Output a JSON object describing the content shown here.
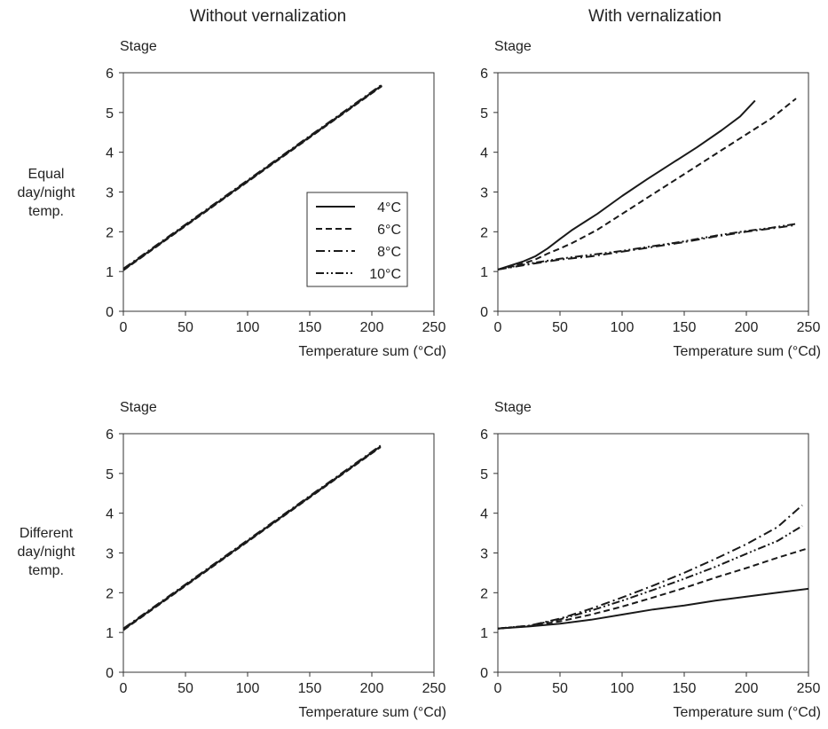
{
  "figure": {
    "column_titles": [
      "Without vernalization",
      "With vernalization"
    ],
    "row_labels": [
      [
        "Equal",
        "day/night",
        "temp."
      ],
      [
        "Different",
        "day/night",
        "temp."
      ]
    ]
  },
  "legend": {
    "location": "inside top-left panel, right side",
    "entries": [
      {
        "label": "4°C",
        "dash": "solid"
      },
      {
        "label": "6°C",
        "dash": "dashed"
      },
      {
        "label": "8°C",
        "dash": "dash-dot"
      },
      {
        "label": "10°C",
        "dash": "dash-dot-dot"
      }
    ]
  },
  "chart_data": [
    {
      "type": "line",
      "panel": "top-left",
      "ylabel": "Stage",
      "xlabel": "Temperature sum (°Cd)",
      "xlim": [
        0,
        250
      ],
      "ylim": [
        0,
        6
      ],
      "xticks": [
        "0",
        "50",
        "100",
        "150",
        "200",
        "250"
      ],
      "yticks": [
        "0",
        "1",
        "2",
        "3",
        "4",
        "5",
        "6"
      ],
      "grid": false,
      "legend": true,
      "series": [
        {
          "dash": "solid",
          "x": [
            0,
            208
          ],
          "y": [
            1.05,
            5.68
          ]
        },
        {
          "dash": "dashed",
          "x": [
            0,
            208
          ],
          "y": [
            1.03,
            5.66
          ]
        },
        {
          "dash": "dash-dot",
          "x": [
            0,
            208
          ],
          "y": [
            1.07,
            5.7
          ]
        },
        {
          "dash": "dash-dot-dot",
          "x": [
            0,
            208
          ],
          "y": [
            1.04,
            5.67
          ]
        }
      ]
    },
    {
      "type": "line",
      "panel": "top-right",
      "ylabel": "Stage",
      "xlabel": "Temperature sum (°Cd)",
      "xlim": [
        0,
        250
      ],
      "ylim": [
        0,
        6
      ],
      "xticks": [
        "0",
        "50",
        "100",
        "150",
        "200",
        "250"
      ],
      "yticks": [
        "0",
        "1",
        "2",
        "3",
        "4",
        "5",
        "6"
      ],
      "grid": false,
      "legend": false,
      "series": [
        {
          "dash": "solid",
          "x": [
            0,
            10,
            20,
            30,
            40,
            50,
            60,
            70,
            80,
            100,
            120,
            140,
            160,
            180,
            195,
            207
          ],
          "y": [
            1.05,
            1.15,
            1.25,
            1.38,
            1.58,
            1.82,
            2.05,
            2.25,
            2.45,
            2.9,
            3.32,
            3.72,
            4.12,
            4.55,
            4.9,
            5.3
          ]
        },
        {
          "dash": "dashed",
          "x": [
            0,
            10,
            20,
            30,
            40,
            50,
            60,
            80,
            100,
            120,
            140,
            160,
            180,
            200,
            220,
            240
          ],
          "y": [
            1.05,
            1.12,
            1.2,
            1.3,
            1.45,
            1.58,
            1.72,
            2.05,
            2.45,
            2.85,
            3.25,
            3.65,
            4.05,
            4.45,
            4.85,
            5.35
          ]
        },
        {
          "dash": "dash-dot",
          "x": [
            0,
            25,
            50,
            75,
            100,
            125,
            150,
            175,
            200,
            220,
            240
          ],
          "y": [
            1.05,
            1.18,
            1.3,
            1.38,
            1.5,
            1.62,
            1.74,
            1.88,
            2.0,
            2.08,
            2.17
          ]
        },
        {
          "dash": "dash-dot-dot",
          "x": [
            0,
            25,
            50,
            75,
            100,
            125,
            150,
            175,
            200,
            220,
            240
          ],
          "y": [
            1.05,
            1.2,
            1.32,
            1.42,
            1.52,
            1.64,
            1.76,
            1.9,
            2.02,
            2.1,
            2.2
          ]
        }
      ]
    },
    {
      "type": "line",
      "panel": "bottom-left",
      "ylabel": "Stage",
      "xlabel": "Temperature sum (°Cd)",
      "xlim": [
        0,
        250
      ],
      "ylim": [
        0,
        6
      ],
      "xticks": [
        "0",
        "50",
        "100",
        "150",
        "200",
        "250"
      ],
      "yticks": [
        "0",
        "1",
        "2",
        "3",
        "4",
        "5",
        "6"
      ],
      "grid": false,
      "legend": false,
      "series": [
        {
          "dash": "solid",
          "x": [
            0,
            207
          ],
          "y": [
            1.08,
            5.68
          ]
        },
        {
          "dash": "dashed",
          "x": [
            0,
            207
          ],
          "y": [
            1.06,
            5.66
          ]
        },
        {
          "dash": "dash-dot",
          "x": [
            0,
            207
          ],
          "y": [
            1.1,
            5.7
          ]
        },
        {
          "dash": "dash-dot-dot",
          "x": [
            0,
            207
          ],
          "y": [
            1.07,
            5.67
          ]
        }
      ]
    },
    {
      "type": "line",
      "panel": "bottom-right",
      "ylabel": "Stage",
      "xlabel": "Temperature sum (°Cd)",
      "xlim": [
        0,
        250
      ],
      "ylim": [
        0,
        6
      ],
      "xticks": [
        "0",
        "50",
        "100",
        "150",
        "200",
        "250"
      ],
      "yticks": [
        "0",
        "1",
        "2",
        "3",
        "4",
        "5",
        "6"
      ],
      "grid": false,
      "legend": false,
      "series": [
        {
          "dash": "solid",
          "x": [
            0,
            25,
            50,
            75,
            100,
            125,
            150,
            175,
            200,
            225,
            250
          ],
          "y": [
            1.1,
            1.15,
            1.22,
            1.32,
            1.45,
            1.58,
            1.68,
            1.8,
            1.9,
            2.0,
            2.1
          ]
        },
        {
          "dash": "dashed",
          "x": [
            0,
            25,
            50,
            75,
            100,
            125,
            150,
            175,
            200,
            225,
            250
          ],
          "y": [
            1.1,
            1.16,
            1.28,
            1.45,
            1.65,
            1.88,
            2.12,
            2.38,
            2.62,
            2.88,
            3.12
          ]
        },
        {
          "dash": "dash-dot",
          "x": [
            0,
            25,
            50,
            75,
            100,
            125,
            150,
            175,
            200,
            225,
            245
          ],
          "y": [
            1.1,
            1.17,
            1.35,
            1.6,
            1.88,
            2.18,
            2.5,
            2.85,
            3.22,
            3.65,
            4.2
          ]
        },
        {
          "dash": "dash-dot-dot",
          "x": [
            0,
            25,
            50,
            75,
            100,
            125,
            150,
            175,
            200,
            225,
            245
          ],
          "y": [
            1.1,
            1.17,
            1.33,
            1.55,
            1.8,
            2.07,
            2.35,
            2.65,
            2.98,
            3.3,
            3.68
          ]
        }
      ]
    }
  ]
}
